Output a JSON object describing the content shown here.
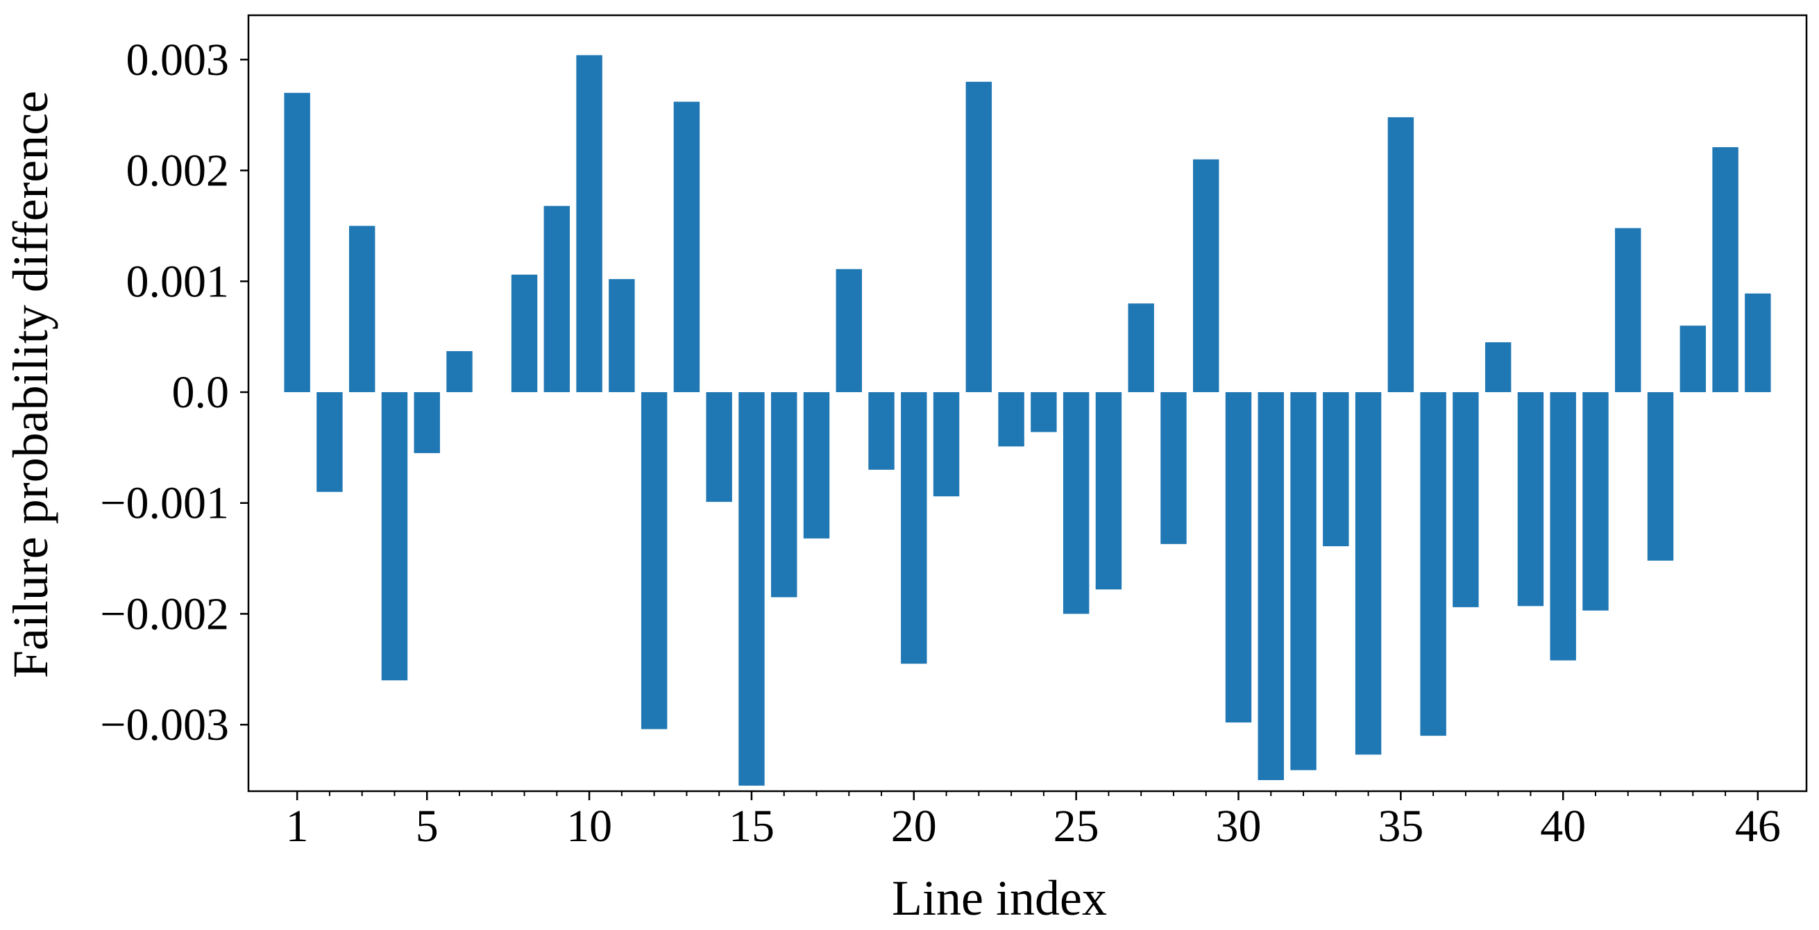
{
  "chart_data": {
    "type": "bar",
    "title": "",
    "xlabel": "Line index",
    "ylabel": "Failure probability difference",
    "bar_color": "#1f77b4",
    "grid": false,
    "ylim": [
      -0.0036,
      0.0034
    ],
    "xlim": [
      -0.5,
      47.5
    ],
    "y_ticks": [
      0.003,
      0.002,
      0.001,
      0.0,
      -0.001,
      -0.002,
      -0.003
    ],
    "y_tick_labels": [
      "0.003",
      "0.002",
      "0.001",
      "0.0",
      "−0.001",
      "−0.002",
      "−0.003"
    ],
    "x_tick_values": [
      1,
      5,
      10,
      15,
      20,
      25,
      30,
      35,
      40,
      46
    ],
    "x_tick_labels": [
      "1",
      "5",
      "10",
      "15",
      "20",
      "25",
      "30",
      "35",
      "40",
      "46"
    ],
    "categories": [
      1,
      2,
      3,
      4,
      5,
      6,
      7,
      8,
      9,
      10,
      11,
      12,
      13,
      14,
      15,
      16,
      17,
      18,
      19,
      20,
      21,
      22,
      23,
      24,
      25,
      26,
      27,
      28,
      29,
      30,
      31,
      32,
      33,
      34,
      35,
      36,
      37,
      38,
      39,
      40,
      41,
      42,
      43,
      44,
      45,
      46
    ],
    "values": [
      0.0027,
      -0.0009,
      0.0015,
      -0.0026,
      -0.00055,
      0.00037,
      0.0,
      0.00106,
      0.00168,
      0.00304,
      0.00102,
      -0.00304,
      0.00262,
      -0.00099,
      -0.00355,
      -0.00185,
      -0.00132,
      0.00111,
      -0.0007,
      -0.00245,
      -0.00094,
      0.0028,
      -0.00049,
      -0.00036,
      -0.002,
      -0.00178,
      0.0008,
      -0.00137,
      0.0021,
      -0.00298,
      -0.0035,
      -0.00341,
      -0.00139,
      -0.00327,
      0.00248,
      -0.0031,
      -0.00194,
      0.00045,
      -0.00193,
      -0.00242,
      -0.00197,
      0.00148,
      -0.00152,
      0.0006,
      0.00221,
      0.00089
    ]
  }
}
